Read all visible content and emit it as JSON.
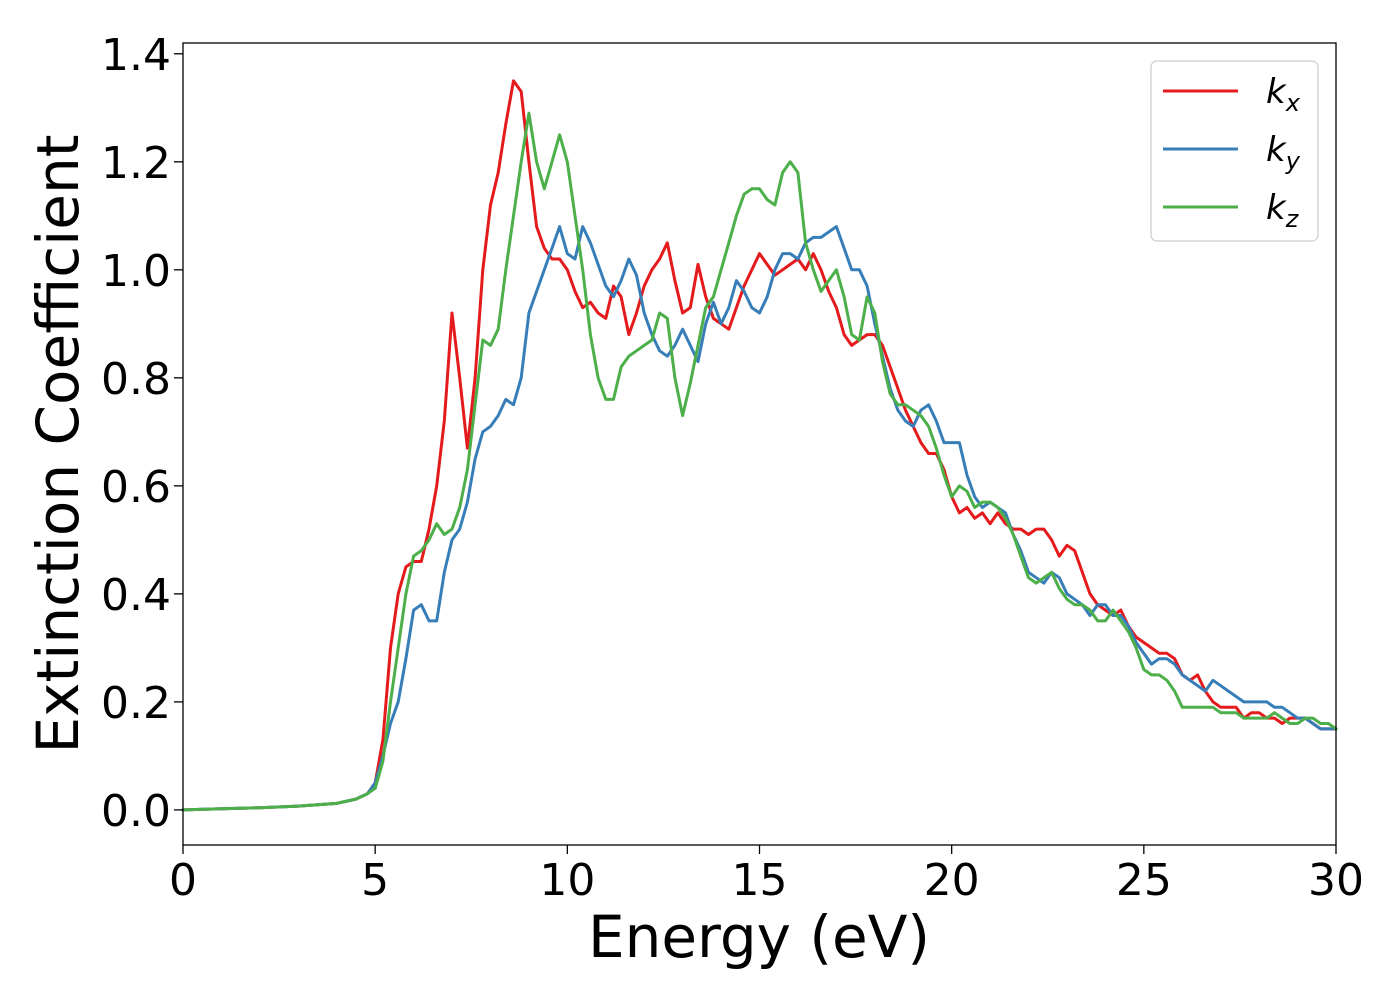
{
  "chart_data": {
    "type": "line",
    "xlabel": "Energy (eV)",
    "ylabel": "Extinction Coefficient",
    "xlim": [
      0,
      30
    ],
    "ylim": [
      -0.065,
      1.42
    ],
    "xticks": [
      0,
      5,
      10,
      15,
      20,
      25,
      30
    ],
    "yticks": [
      0.0,
      0.2,
      0.4,
      0.6,
      0.8,
      1.0,
      1.2,
      1.4
    ],
    "xtick_labels": [
      "0",
      "5",
      "10",
      "15",
      "20",
      "25",
      "30"
    ],
    "ytick_labels": [
      "0.0",
      "0.2",
      "0.4",
      "0.6",
      "0.8",
      "1.0",
      "1.2",
      "1.4"
    ],
    "grid": false,
    "legend_position": "top-right",
    "series": [
      {
        "name": "k",
        "subscript": "x",
        "color": "#e41a1c",
        "x": [
          0,
          1,
          2,
          3,
          4,
          4.5,
          4.8,
          5.0,
          5.2,
          5.4,
          5.6,
          5.8,
          6.0,
          6.2,
          6.4,
          6.6,
          6.8,
          7.0,
          7.2,
          7.4,
          7.6,
          7.8,
          8.0,
          8.2,
          8.4,
          8.6,
          8.8,
          9.0,
          9.2,
          9.4,
          9.6,
          9.8,
          10.0,
          10.2,
          10.4,
          10.6,
          10.8,
          11.0,
          11.2,
          11.4,
          11.6,
          11.8,
          12.0,
          12.2,
          12.4,
          12.6,
          12.8,
          13.0,
          13.2,
          13.4,
          13.6,
          13.8,
          14.0,
          14.2,
          14.4,
          14.6,
          14.8,
          15.0,
          15.2,
          15.4,
          15.6,
          15.8,
          16.0,
          16.2,
          16.4,
          16.6,
          16.8,
          17.0,
          17.2,
          17.4,
          17.6,
          17.8,
          18.0,
          18.2,
          18.4,
          18.6,
          18.8,
          19.0,
          19.2,
          19.4,
          19.6,
          19.8,
          20.0,
          20.2,
          20.4,
          20.6,
          20.8,
          21.0,
          21.2,
          21.4,
          21.6,
          21.8,
          22.0,
          22.2,
          22.4,
          22.6,
          22.8,
          23.0,
          23.2,
          23.4,
          23.6,
          23.8,
          24.0,
          24.2,
          24.4,
          24.6,
          24.8,
          25.0,
          25.2,
          25.4,
          25.6,
          25.8,
          26.0,
          26.2,
          26.4,
          26.6,
          26.8,
          27.0,
          27.2,
          27.4,
          27.6,
          27.8,
          28.0,
          28.2,
          28.4,
          28.6,
          28.8,
          29.0,
          29.2,
          29.4,
          29.6,
          29.8,
          30.0
        ],
        "y": [
          0.0,
          0.002,
          0.004,
          0.007,
          0.012,
          0.02,
          0.03,
          0.05,
          0.13,
          0.3,
          0.4,
          0.45,
          0.46,
          0.46,
          0.52,
          0.6,
          0.72,
          0.92,
          0.8,
          0.67,
          0.8,
          1.0,
          1.12,
          1.18,
          1.27,
          1.35,
          1.33,
          1.2,
          1.08,
          1.04,
          1.02,
          1.02,
          1.0,
          0.96,
          0.93,
          0.94,
          0.92,
          0.91,
          0.97,
          0.95,
          0.88,
          0.92,
          0.97,
          1.0,
          1.02,
          1.05,
          0.98,
          0.92,
          0.93,
          1.01,
          0.95,
          0.91,
          0.9,
          0.89,
          0.93,
          0.97,
          1.0,
          1.03,
          1.01,
          0.99,
          1.0,
          1.01,
          1.02,
          1.0,
          1.03,
          1.0,
          0.96,
          0.93,
          0.88,
          0.86,
          0.87,
          0.88,
          0.88,
          0.86,
          0.82,
          0.78,
          0.74,
          0.71,
          0.68,
          0.66,
          0.66,
          0.63,
          0.58,
          0.55,
          0.56,
          0.54,
          0.55,
          0.53,
          0.55,
          0.53,
          0.52,
          0.52,
          0.51,
          0.52,
          0.52,
          0.5,
          0.47,
          0.49,
          0.48,
          0.44,
          0.4,
          0.38,
          0.37,
          0.36,
          0.37,
          0.34,
          0.32,
          0.31,
          0.3,
          0.29,
          0.29,
          0.28,
          0.25,
          0.24,
          0.25,
          0.22,
          0.2,
          0.19,
          0.19,
          0.19,
          0.17,
          0.18,
          0.18,
          0.17,
          0.17,
          0.16,
          0.17,
          0.17,
          0.17,
          0.16,
          0.15,
          0.15,
          0.15
        ]
      },
      {
        "name": "k",
        "subscript": "y",
        "color": "#377eb8",
        "x": [
          0,
          1,
          2,
          3,
          4,
          4.5,
          4.8,
          5.0,
          5.2,
          5.4,
          5.6,
          5.8,
          6.0,
          6.2,
          6.4,
          6.6,
          6.8,
          7.0,
          7.2,
          7.4,
          7.6,
          7.8,
          8.0,
          8.2,
          8.4,
          8.6,
          8.8,
          9.0,
          9.2,
          9.4,
          9.6,
          9.8,
          10.0,
          10.2,
          10.4,
          10.6,
          10.8,
          11.0,
          11.2,
          11.4,
          11.6,
          11.8,
          12.0,
          12.2,
          12.4,
          12.6,
          12.8,
          13.0,
          13.2,
          13.4,
          13.6,
          13.8,
          14.0,
          14.2,
          14.4,
          14.6,
          14.8,
          15.0,
          15.2,
          15.4,
          15.6,
          15.8,
          16.0,
          16.2,
          16.4,
          16.6,
          16.8,
          17.0,
          17.2,
          17.4,
          17.6,
          17.8,
          18.0,
          18.2,
          18.4,
          18.6,
          18.8,
          19.0,
          19.2,
          19.4,
          19.6,
          19.8,
          20.0,
          20.2,
          20.4,
          20.6,
          20.8,
          21.0,
          21.2,
          21.4,
          21.6,
          21.8,
          22.0,
          22.2,
          22.4,
          22.6,
          22.8,
          23.0,
          23.2,
          23.4,
          23.6,
          23.8,
          24.0,
          24.2,
          24.4,
          24.6,
          24.8,
          25.0,
          25.2,
          25.4,
          25.6,
          25.8,
          26.0,
          26.2,
          26.4,
          26.6,
          26.8,
          27.0,
          27.2,
          27.4,
          27.6,
          27.8,
          28.0,
          28.2,
          28.4,
          28.6,
          28.8,
          29.0,
          29.2,
          29.4,
          29.6,
          29.8,
          30.0
        ],
        "y": [
          0.0,
          0.002,
          0.004,
          0.007,
          0.012,
          0.02,
          0.03,
          0.05,
          0.1,
          0.16,
          0.2,
          0.28,
          0.37,
          0.38,
          0.35,
          0.35,
          0.44,
          0.5,
          0.52,
          0.57,
          0.65,
          0.7,
          0.71,
          0.73,
          0.76,
          0.75,
          0.8,
          0.92,
          0.96,
          1.0,
          1.04,
          1.08,
          1.03,
          1.02,
          1.08,
          1.05,
          1.01,
          0.97,
          0.95,
          0.98,
          1.02,
          0.99,
          0.92,
          0.88,
          0.85,
          0.84,
          0.86,
          0.89,
          0.86,
          0.83,
          0.9,
          0.94,
          0.9,
          0.93,
          0.98,
          0.96,
          0.93,
          0.92,
          0.95,
          1.0,
          1.03,
          1.03,
          1.02,
          1.05,
          1.06,
          1.06,
          1.07,
          1.08,
          1.04,
          1.0,
          1.0,
          0.97,
          0.9,
          0.84,
          0.78,
          0.74,
          0.72,
          0.71,
          0.74,
          0.75,
          0.72,
          0.68,
          0.68,
          0.68,
          0.62,
          0.58,
          0.56,
          0.57,
          0.56,
          0.55,
          0.51,
          0.48,
          0.44,
          0.43,
          0.42,
          0.44,
          0.43,
          0.4,
          0.39,
          0.38,
          0.36,
          0.38,
          0.38,
          0.36,
          0.36,
          0.34,
          0.31,
          0.29,
          0.27,
          0.28,
          0.28,
          0.27,
          0.25,
          0.24,
          0.23,
          0.22,
          0.24,
          0.23,
          0.22,
          0.21,
          0.2,
          0.2,
          0.2,
          0.2,
          0.19,
          0.19,
          0.18,
          0.17,
          0.17,
          0.16,
          0.15,
          0.15,
          0.15
        ]
      },
      {
        "name": "k",
        "subscript": "z",
        "color": "#4daf4a",
        "x": [
          0,
          1,
          2,
          3,
          4,
          4.5,
          4.8,
          5.0,
          5.2,
          5.4,
          5.6,
          5.8,
          6.0,
          6.2,
          6.4,
          6.6,
          6.8,
          7.0,
          7.2,
          7.4,
          7.6,
          7.8,
          8.0,
          8.2,
          8.4,
          8.6,
          8.8,
          9.0,
          9.2,
          9.4,
          9.6,
          9.8,
          10.0,
          10.2,
          10.4,
          10.6,
          10.8,
          11.0,
          11.2,
          11.4,
          11.6,
          11.8,
          12.0,
          12.2,
          12.4,
          12.6,
          12.8,
          13.0,
          13.2,
          13.4,
          13.6,
          13.8,
          14.0,
          14.2,
          14.4,
          14.6,
          14.8,
          15.0,
          15.2,
          15.4,
          15.6,
          15.8,
          16.0,
          16.2,
          16.4,
          16.6,
          16.8,
          17.0,
          17.2,
          17.4,
          17.6,
          17.8,
          18.0,
          18.2,
          18.4,
          18.6,
          18.8,
          19.0,
          19.2,
          19.4,
          19.6,
          19.8,
          20.0,
          20.2,
          20.4,
          20.6,
          20.8,
          21.0,
          21.2,
          21.4,
          21.6,
          21.8,
          22.0,
          22.2,
          22.4,
          22.6,
          22.8,
          23.0,
          23.2,
          23.4,
          23.6,
          23.8,
          24.0,
          24.2,
          24.4,
          24.6,
          24.8,
          25.0,
          25.2,
          25.4,
          25.6,
          25.8,
          26.0,
          26.2,
          26.4,
          26.6,
          26.8,
          27.0,
          27.2,
          27.4,
          27.6,
          27.8,
          28.0,
          28.2,
          28.4,
          28.6,
          28.8,
          29.0,
          29.2,
          29.4,
          29.6,
          29.8,
          30.0
        ],
        "y": [
          0.0,
          0.002,
          0.004,
          0.007,
          0.012,
          0.02,
          0.03,
          0.04,
          0.09,
          0.2,
          0.3,
          0.4,
          0.47,
          0.48,
          0.5,
          0.53,
          0.51,
          0.52,
          0.56,
          0.63,
          0.75,
          0.87,
          0.86,
          0.89,
          1.0,
          1.1,
          1.2,
          1.29,
          1.2,
          1.15,
          1.2,
          1.25,
          1.2,
          1.1,
          1.0,
          0.88,
          0.8,
          0.76,
          0.76,
          0.82,
          0.84,
          0.85,
          0.86,
          0.87,
          0.92,
          0.91,
          0.8,
          0.73,
          0.79,
          0.86,
          0.93,
          0.95,
          1.0,
          1.05,
          1.1,
          1.14,
          1.15,
          1.15,
          1.13,
          1.12,
          1.18,
          1.2,
          1.18,
          1.05,
          1.0,
          0.96,
          0.98,
          1.0,
          0.95,
          0.88,
          0.87,
          0.95,
          0.92,
          0.83,
          0.77,
          0.75,
          0.75,
          0.74,
          0.73,
          0.71,
          0.67,
          0.62,
          0.58,
          0.6,
          0.59,
          0.56,
          0.57,
          0.57,
          0.56,
          0.54,
          0.51,
          0.47,
          0.43,
          0.42,
          0.43,
          0.44,
          0.41,
          0.39,
          0.38,
          0.38,
          0.37,
          0.35,
          0.35,
          0.37,
          0.35,
          0.33,
          0.3,
          0.26,
          0.25,
          0.25,
          0.24,
          0.22,
          0.19,
          0.19,
          0.19,
          0.19,
          0.19,
          0.18,
          0.18,
          0.18,
          0.17,
          0.17,
          0.17,
          0.17,
          0.18,
          0.17,
          0.16,
          0.16,
          0.17,
          0.17,
          0.16,
          0.16,
          0.15
        ]
      }
    ]
  }
}
